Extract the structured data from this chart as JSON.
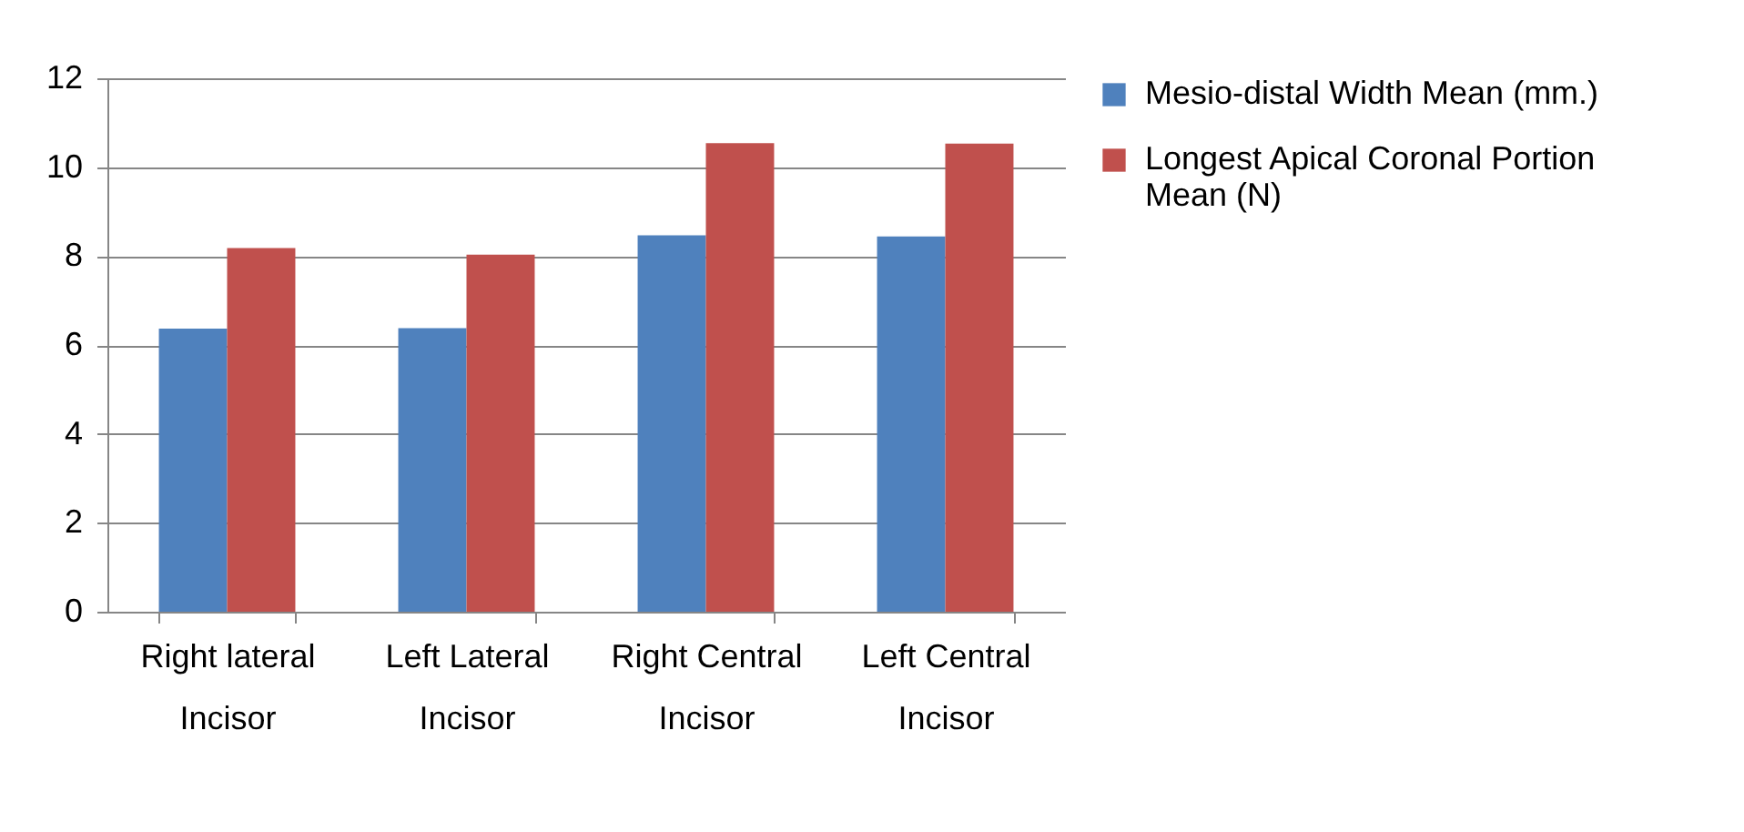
{
  "chart_data": {
    "type": "bar",
    "categories": [
      "Right lateral Incisor",
      "Left Lateral Incisor",
      "Right Central Incisor",
      "Left Central Incisor"
    ],
    "series": [
      {
        "name": "Mesio-distal Width Mean (mm.)",
        "color": "#4f81bd",
        "values": [
          6.37,
          6.38,
          8.47,
          8.44
        ]
      },
      {
        "name": "Longest Apical Coronal Portion Mean (N)",
        "color": "#c0504d",
        "values": [
          8.18,
          8.03,
          10.54,
          10.53
        ]
      }
    ],
    "ylim": [
      0,
      12
    ],
    "yticks": [
      0,
      2,
      4,
      6,
      8,
      10,
      12
    ],
    "grid": "y",
    "legend": "right"
  }
}
